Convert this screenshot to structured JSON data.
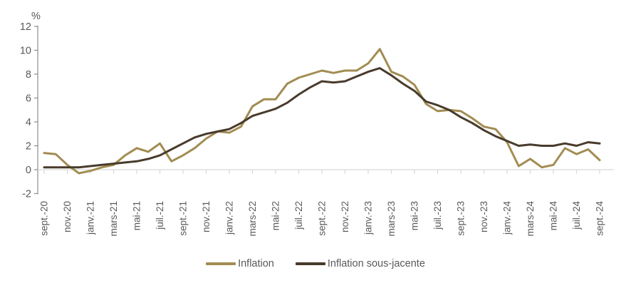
{
  "page": {
    "background": "#ffffff"
  },
  "chart_data": {
    "type": "line",
    "title": "",
    "unit_label": "%",
    "grid": "none",
    "legend_position": "bottom-center",
    "ylim": [
      -2,
      12
    ],
    "y_ticks": [
      12,
      10,
      8,
      6,
      4,
      2,
      0,
      -2
    ],
    "x_tick_labels": [
      "sept.-20",
      "nov.-20",
      "janv.-21",
      "mars-21",
      "mai-21",
      "juil.-21",
      "sept.-21",
      "nov.-21",
      "janv.-22",
      "mars-22",
      "mai-22",
      "juil.-22",
      "sept.-22",
      "nov.-22",
      "janv.-23",
      "mars-23",
      "mai-23",
      "juil.-23",
      "sept.-23",
      "nov.-23",
      "janv.-24",
      "mars-24",
      "mai-24",
      "juil.-24",
      "sept.-24"
    ],
    "months": [
      "sept.-20",
      "oct.-20",
      "nov.-20",
      "déc.-20",
      "janv.-21",
      "févr.-21",
      "mars-21",
      "avr.-21",
      "mai-21",
      "juin-21",
      "juil.-21",
      "août-21",
      "sept.-21",
      "oct.-21",
      "nov.-21",
      "déc.-21",
      "janv.-22",
      "févr.-22",
      "mars-22",
      "avr.-22",
      "mai-22",
      "juin-22",
      "juil.-22",
      "août-22",
      "sept.-22",
      "oct.-22",
      "nov.-22",
      "déc.-22",
      "janv.-23",
      "févr.-23",
      "mars-23",
      "avr.-23",
      "mai-23",
      "juin-23",
      "juil.-23",
      "août-23",
      "sept.-23",
      "oct.-23",
      "nov.-23",
      "déc.-23",
      "janv.-24",
      "févr.-24",
      "mars-24",
      "avr.-24",
      "mai-24",
      "juin-24",
      "juil.-24",
      "août-24",
      "sept.-24"
    ],
    "series": [
      {
        "name": "Inflation",
        "color": "#a28c52",
        "values": [
          1.4,
          1.3,
          0.4,
          -0.3,
          -0.1,
          0.2,
          0.4,
          1.2,
          1.8,
          1.5,
          2.2,
          0.7,
          1.2,
          1.8,
          2.6,
          3.2,
          3.1,
          3.6,
          5.3,
          5.9,
          5.9,
          7.2,
          7.7,
          8.0,
          8.3,
          8.1,
          8.3,
          8.3,
          8.9,
          10.1,
          8.2,
          7.8,
          7.1,
          5.5,
          4.9,
          5.0,
          4.9,
          4.3,
          3.6,
          3.4,
          2.3,
          0.3,
          0.9,
          0.2,
          0.4,
          1.8,
          1.3,
          1.7,
          0.8
        ]
      },
      {
        "name": "Inflation sous-jacente",
        "color": "#493b2c",
        "values": [
          0.2,
          0.2,
          0.2,
          0.2,
          0.3,
          0.4,
          0.5,
          0.6,
          0.7,
          0.9,
          1.2,
          1.7,
          2.2,
          2.7,
          3.0,
          3.2,
          3.4,
          3.9,
          4.5,
          4.8,
          5.1,
          5.6,
          6.3,
          6.9,
          7.4,
          7.3,
          7.4,
          7.8,
          8.2,
          8.5,
          7.9,
          7.2,
          6.6,
          5.7,
          5.4,
          5.0,
          4.4,
          3.9,
          3.3,
          2.8,
          2.4,
          2.0,
          2.1,
          2.0,
          2.0,
          2.2,
          2.0,
          2.3,
          2.2
        ]
      }
    ],
    "axis_color": "#8c8c8c",
    "zero_line_color": "#d9d9d9",
    "text_color": "#595959"
  }
}
